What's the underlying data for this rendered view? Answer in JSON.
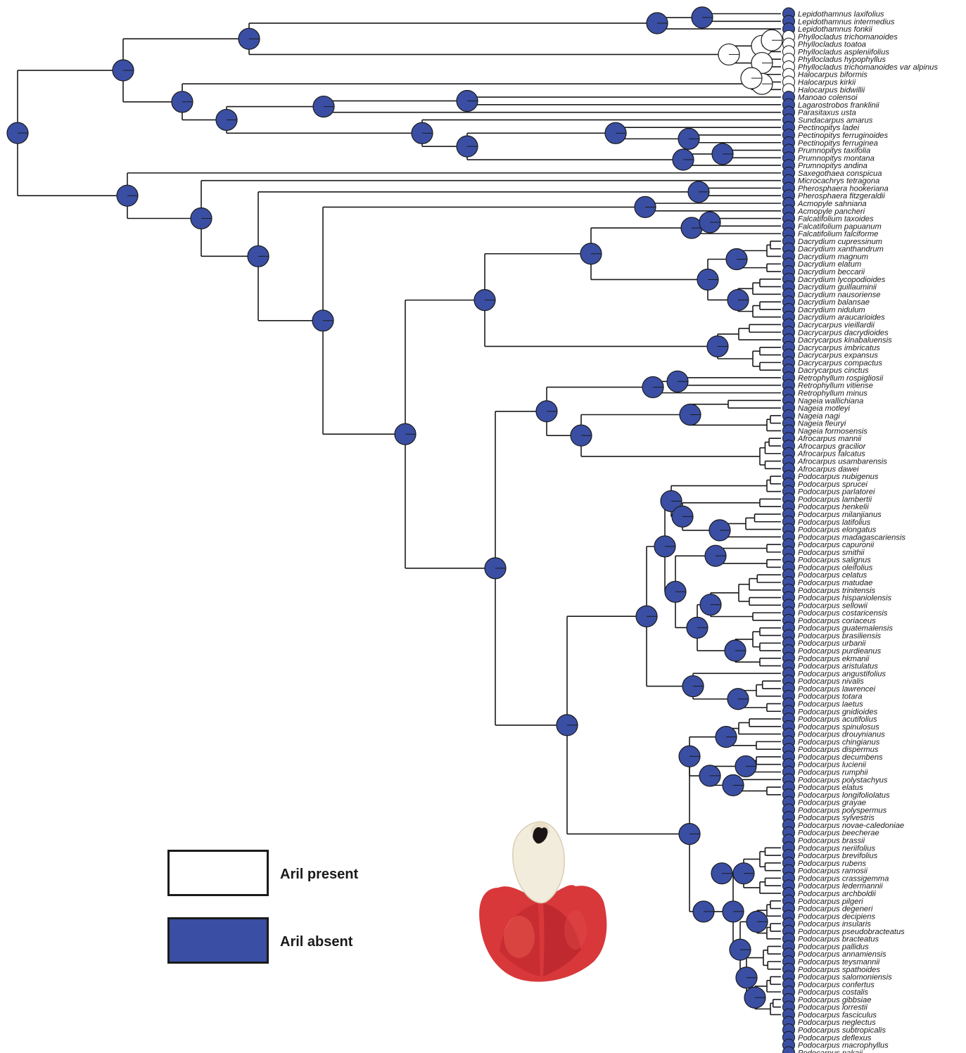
{
  "colors": {
    "aril_present": "#ffffff",
    "aril_absent": "#3a4fa3",
    "branch": "#1a1a1a"
  },
  "legend": [
    {
      "label": "Aril present",
      "state": "present"
    },
    {
      "label": "Aril absent",
      "state": "absent"
    }
  ],
  "tips": [
    "Lepidothamnus laxifolius",
    "Lepidothamnus intermedius",
    "Lepidothamnus fonkii",
    "Phyllocladus trichomanoides",
    "Phyllocladus toatoa",
    "Phyllocladus aspleniifolius",
    "Phyllocladus hypophyllus",
    "Phyllocladus trichomanoides var alpinus",
    "Halocarpus biformis",
    "Halocarpus kirkii",
    "Halocarpus bidwillii",
    "Manoao colensoi",
    "Lagarostrobos franklinii",
    "Parasitaxus usta",
    "Sundacarpus amarus",
    "Pectinopitys ladei",
    "Pectinopitys ferruginoides",
    "Pectinopitys ferruginea",
    "Prumnopitys taxifolia",
    "Prumnopitys montana",
    "Prumnopitys andina",
    "Saxegothaea conspicua",
    "Microcachrys tetragona",
    "Pherosphaera hookeriana",
    "Pherosphaera fitzgeraldii",
    "Acmopyle sahniana",
    "Acmopyle pancheri",
    "Falcatifolium taxoides",
    "Falcatifolium papuanum",
    "Falcatifolium falciforme",
    "Dacrydium cupressinum",
    "Dacrydium xanthandrum",
    "Dacrydium magnum",
    "Dacrydium elatum",
    "Dacrydium beccarii",
    "Dacrydium lycopodioides",
    "Dacrydium guillauminii",
    "Dacrydium nausoriense",
    "Dacrydium balansae",
    "Dacrydium nidulum",
    "Dacrydium araucarioides",
    "Dacrycarpus vieillardii",
    "Dacrycarpus dacrydioides",
    "Dacrycarpus kinabaluensis",
    "Dacrycarpus imbricatus",
    "Dacrycarpus expansus",
    "Dacrycarpus compactus",
    "Dacrycarpus cinctus",
    "Retrophyllum rospigliosii",
    "Retrophyllum vitiense",
    "Retrophyllum minus",
    "Nageia wallichiana",
    "Nageia motleyi",
    "Nageia nagi",
    "Nageia fleuryi",
    "Nageia formosensis",
    "Afrocarpus mannii",
    "Afrocarpus gracilior",
    "Afrocarpus falcatus",
    "Afrocarpus usambarensis",
    "Afrocarpus dawei",
    "Podocarpus nubigenus",
    "Podocarpus sprucei",
    "Podocarpus parlatorei",
    "Podocarpus lambertii",
    "Podocarpus henkelii",
    "Podocarpus milanjianus",
    "Podocarpus latifolius",
    "Podocarpus elongatus",
    "Podocarpus madagascariensis",
    "Podocarpus capuronii",
    "Podocarpus smithii",
    "Podocarpus salignus",
    "Podocarpus oleifolius",
    "Podocarpus celatus",
    "Podocarpus matudae",
    "Podocarpus trinitensis",
    "Podocarpus hispaniolensis",
    "Podocarpus sellowii",
    "Podocarpus costaricensis",
    "Podocarpus coriaceus",
    "Podocarpus guatemalensis",
    "Podocarpus brasiliensis",
    "Podocarpus urbanii",
    "Podocarpus purdieanus",
    "Podocarpus ekmanii",
    "Podocarpus aristulatus",
    "Podocarpus angustifolius",
    "Podocarpus nivalis",
    "Podocarpus lawrencei",
    "Podocarpus totara",
    "Podocarpus laetus",
    "Podocarpus gnidioides",
    "Podocarpus acutifolius",
    "Podocarpus spinulosus",
    "Podocarpus drouynianus",
    "Podocarpus chingianus",
    "Podocarpus dispermus",
    "Podocarpus decumbens",
    "Podocarpus lucienii",
    "Podocarpus rumphii",
    "Podocarpus polystachyus",
    "Podocarpus elatus",
    "Podocarpus longifoliolatus",
    "Podocarpus grayae",
    "Podocarpus polyspermus",
    "Podocarpus sylvestris",
    "Podocarpus novae-caledoniae",
    "Podocarpus beecherae",
    "Podocarpus brassii",
    "Podocarpus neriifolius",
    "Podocarpus brevifolius",
    "Podocarpus rubens",
    "Podocarpus ramosii",
    "Podocarpus crassigemma",
    "Podocarpus ledermannii",
    "Podocarpus archboldii",
    "Podocarpus pilgeri",
    "Podocarpus degeneri",
    "Podocarpus decipiens",
    "Podocarpus insularis",
    "Podocarpus pseudobracteatus",
    "Podocarpus bracteatus",
    "Podocarpus pallidus",
    "Podocarpus annamiensis",
    "Podocarpus teysmannii",
    "Podocarpus spathoides",
    "Podocarpus salomoniensis",
    "Podocarpus confertus",
    "Podocarpus costalis",
    "Podocarpus gibbsiae",
    "Podocarpus lorrestii",
    "Podocarpus fasciculus",
    "Podocarpus neglectus",
    "Podocarpus subtropicalis",
    "Podocarpus deflexus",
    "Podocarpus macrophyllus",
    "Podocarpus nakaii"
  ],
  "aril_present_tips": [
    "Phyllocladus trichomanoides",
    "Phyllocladus toatoa",
    "Phyllocladus aspleniifolius",
    "Phyllocladus hypophyllus",
    "Phyllocladus trichomanoides var alpinus",
    "Halocarpus biformis",
    "Halocarpus kirkii",
    "Halocarpus bidwillii"
  ]
}
